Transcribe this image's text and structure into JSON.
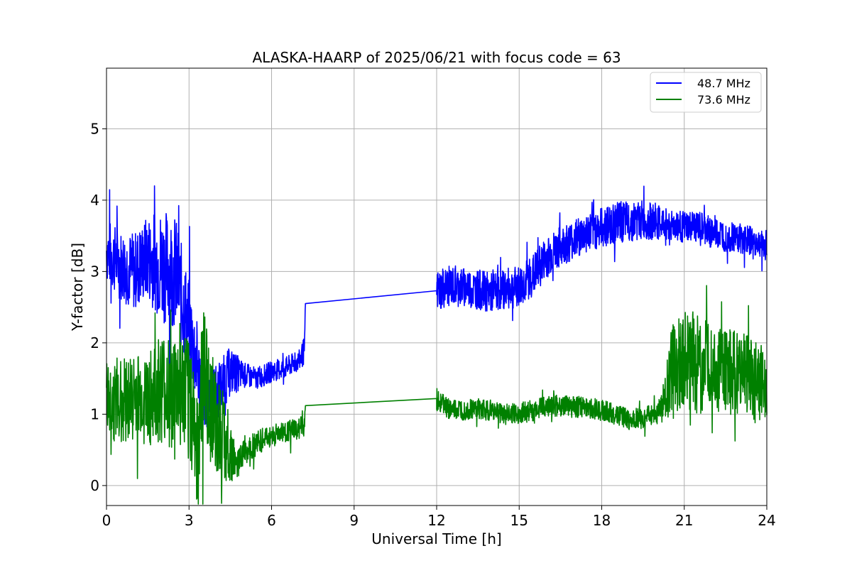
{
  "chart_data": {
    "type": "line",
    "title": "ALASKA-HAARP of 2025/06/21 with focus code = 63",
    "xlabel": "Universal Time [h]",
    "ylabel": "Y-factor [dB]",
    "xlim": [
      0,
      24
    ],
    "ylim": [
      -0.28,
      5.85
    ],
    "xticks": [
      0,
      3,
      6,
      9,
      12,
      15,
      18,
      21,
      24
    ],
    "yticks": [
      0,
      1,
      2,
      3,
      4,
      5
    ],
    "grid": true,
    "legend_position": "top-right",
    "gap_hours": [
      7.23,
      12.0
    ],
    "series": [
      {
        "name": "48.7 MHz",
        "color": "#0000ff",
        "x": [
          0.0,
          0.5,
          1.0,
          1.5,
          2.0,
          2.5,
          3.0,
          3.3,
          3.5,
          4.0,
          4.5,
          5.0,
          5.5,
          6.0,
          6.5,
          7.0,
          7.2,
          7.23,
          12.0,
          12.5,
          13.0,
          13.5,
          14.0,
          14.5,
          15.0,
          15.5,
          16.0,
          16.5,
          17.0,
          17.5,
          18.0,
          18.5,
          19.0,
          19.5,
          20.0,
          20.5,
          21.0,
          21.5,
          22.0,
          22.5,
          23.0,
          23.5,
          24.0
        ],
        "y": [
          3.3,
          3.1,
          3.0,
          3.2,
          3.1,
          3.0,
          2.2,
          1.7,
          1.2,
          1.3,
          1.6,
          1.55,
          1.5,
          1.6,
          1.65,
          1.75,
          1.9,
          2.55,
          2.73,
          2.8,
          2.78,
          2.75,
          2.7,
          2.76,
          2.78,
          2.95,
          3.2,
          3.35,
          3.45,
          3.55,
          3.62,
          3.68,
          3.7,
          3.72,
          3.68,
          3.66,
          3.62,
          3.62,
          3.55,
          3.5,
          3.48,
          3.42,
          3.35
        ],
        "noise": [
          0.45,
          0.5,
          0.55,
          0.6,
          0.8,
          0.8,
          0.7,
          0.6,
          0.45,
          0.4,
          0.35,
          0.18,
          0.15,
          0.15,
          0.15,
          0.15,
          0.2,
          0.0,
          0.3,
          0.28,
          0.28,
          0.28,
          0.28,
          0.28,
          0.3,
          0.3,
          0.3,
          0.28,
          0.28,
          0.28,
          0.28,
          0.3,
          0.28,
          0.28,
          0.25,
          0.22,
          0.22,
          0.22,
          0.22,
          0.22,
          0.22,
          0.2,
          0.2
        ]
      },
      {
        "name": "73.6 MHz",
        "color": "#008000",
        "x": [
          0.0,
          0.5,
          1.0,
          1.5,
          2.0,
          2.5,
          3.0,
          3.3,
          3.5,
          4.0,
          4.5,
          4.7,
          5.0,
          5.5,
          6.0,
          6.5,
          7.0,
          7.2,
          7.23,
          12.0,
          12.5,
          13.0,
          13.5,
          14.0,
          14.5,
          15.0,
          15.5,
          16.0,
          16.5,
          17.0,
          17.5,
          18.0,
          18.5,
          19.0,
          19.5,
          20.0,
          20.3,
          20.5,
          21.0,
          21.5,
          22.0,
          22.5,
          23.0,
          23.5,
          24.0
        ],
        "y": [
          1.2,
          1.2,
          1.25,
          1.2,
          1.3,
          1.3,
          1.2,
          0.6,
          1.5,
          0.9,
          0.5,
          0.25,
          0.5,
          0.6,
          0.7,
          0.75,
          0.8,
          0.85,
          1.12,
          1.22,
          1.05,
          1.05,
          1.07,
          1.05,
          1.0,
          1.02,
          1.05,
          1.12,
          1.12,
          1.1,
          1.1,
          1.05,
          1.0,
          0.92,
          0.95,
          1.0,
          1.2,
          1.6,
          1.8,
          1.7,
          1.65,
          1.6,
          1.55,
          1.5,
          1.4
        ],
        "noise": [
          0.55,
          0.6,
          0.6,
          0.65,
          0.8,
          0.8,
          0.9,
          0.9,
          1.0,
          0.7,
          0.5,
          0.2,
          0.2,
          0.18,
          0.15,
          0.15,
          0.15,
          0.15,
          0.0,
          0.15,
          0.15,
          0.15,
          0.15,
          0.15,
          0.15,
          0.15,
          0.15,
          0.15,
          0.15,
          0.15,
          0.15,
          0.15,
          0.15,
          0.15,
          0.15,
          0.15,
          0.3,
          0.6,
          0.7,
          0.7,
          0.6,
          0.6,
          0.6,
          0.6,
          0.5
        ]
      }
    ]
  }
}
